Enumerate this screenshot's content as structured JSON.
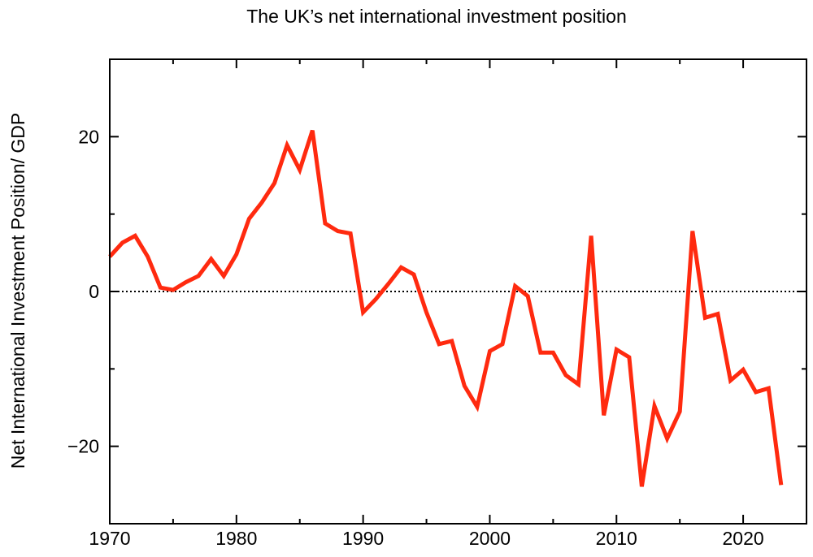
{
  "chart_data": {
    "type": "line",
    "title": "The UK’s net international investment position",
    "xlabel": "",
    "ylabel": "Net International Investment Position/ GDP",
    "xlim": [
      1970,
      2025
    ],
    "ylim": [
      -30,
      30
    ],
    "x_ticks": [
      1970,
      1980,
      1990,
      2000,
      2010,
      2020
    ],
    "y_ticks": [
      -20,
      0,
      20
    ],
    "y_tick_labels": [
      "−20",
      "0",
      "20"
    ],
    "x_tick_labels": [
      "1970",
      "1980",
      "1990",
      "2000",
      "2010",
      "2020"
    ],
    "reference_line": 0,
    "grid": false,
    "series": [
      {
        "color": "#ff2a0f",
        "x": [
          1970,
          1971,
          1972,
          1973,
          1974,
          1975,
          1976,
          1977,
          1978,
          1979,
          1980,
          1981,
          1982,
          1983,
          1984,
          1985,
          1986,
          1987,
          1988,
          1989,
          1990,
          1991,
          1992,
          1993,
          1994,
          1995,
          1996,
          1997,
          1998,
          1999,
          2000,
          2001,
          2002,
          2003,
          2004,
          2005,
          2006,
          2007,
          2008,
          2009,
          2010,
          2011,
          2012,
          2013,
          2014,
          2015,
          2016,
          2017,
          2018,
          2019,
          2020,
          2021,
          2022,
          2023
        ],
        "values": [
          4.5,
          6.3,
          7.2,
          4.5,
          0.5,
          0.2,
          1.2,
          2.0,
          4.2,
          2.0,
          4.8,
          9.4,
          11.5,
          14.0,
          18.9,
          15.7,
          20.8,
          8.8,
          7.8,
          7.5,
          -2.7,
          -1.0,
          1.0,
          3.1,
          2.2,
          -2.7,
          -6.8,
          -6.4,
          -12.2,
          -14.9,
          -7.7,
          -6.8,
          0.7,
          -0.6,
          -7.9,
          -7.9,
          -10.8,
          -12.0,
          7.2,
          -16.0,
          -7.5,
          -8.5,
          -25.2,
          -14.8,
          -19.0,
          -15.5,
          7.8,
          -3.4,
          -2.9,
          -11.5,
          -10.1,
          -13.0,
          -12.5,
          -25.0
        ]
      }
    ]
  }
}
